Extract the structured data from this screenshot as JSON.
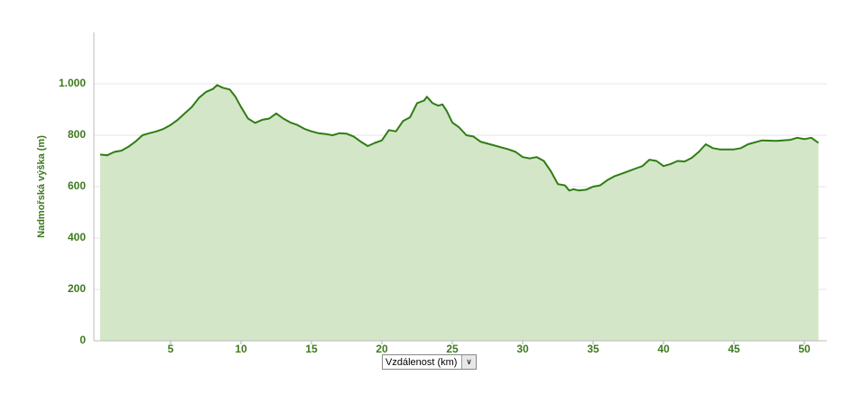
{
  "chart_data": {
    "type": "area",
    "y_label": "Nadmořská výška (m)",
    "x_label": "Vzdálenost (km)",
    "x": [
      0,
      0.5,
      1,
      1.5,
      2,
      2.5,
      3,
      3.5,
      4,
      4.5,
      5,
      5.5,
      6,
      6.5,
      7,
      7.5,
      8,
      8.3,
      8.7,
      9.2,
      9.6,
      10,
      10.5,
      11,
      11.5,
      12,
      12.5,
      13,
      13.5,
      14,
      14.5,
      15,
      15.5,
      16,
      16.5,
      17,
      17.5,
      18,
      18.5,
      19,
      19.5,
      20,
      20.5,
      21,
      21.5,
      22,
      22.5,
      23,
      23.2,
      23.6,
      24,
      24.3,
      24.6,
      25,
      25.5,
      26,
      26.5,
      27,
      28,
      29,
      29.5,
      30,
      30.5,
      31,
      31.5,
      32,
      32.5,
      33,
      33.3,
      33.6,
      34,
      34.5,
      35,
      35.5,
      36,
      36.5,
      37,
      37.5,
      38,
      38.5,
      39,
      39.5,
      40,
      40.5,
      41,
      41.5,
      42,
      42.5,
      43,
      43.5,
      44,
      45,
      45.5,
      46,
      47,
      48,
      49,
      49.5,
      50,
      50.5,
      51
    ],
    "values": [
      725,
      722,
      735,
      740,
      755,
      775,
      800,
      808,
      815,
      825,
      840,
      860,
      885,
      910,
      945,
      968,
      980,
      995,
      985,
      978,
      950,
      910,
      865,
      848,
      860,
      865,
      885,
      865,
      850,
      840,
      825,
      815,
      808,
      805,
      800,
      808,
      806,
      795,
      775,
      758,
      770,
      780,
      820,
      815,
      855,
      870,
      925,
      935,
      950,
      925,
      915,
      920,
      895,
      850,
      830,
      800,
      795,
      775,
      760,
      745,
      735,
      715,
      710,
      715,
      700,
      660,
      610,
      605,
      585,
      590,
      585,
      588,
      600,
      605,
      625,
      640,
      650,
      660,
      670,
      680,
      705,
      700,
      680,
      688,
      700,
      698,
      712,
      735,
      765,
      750,
      745,
      745,
      750,
      765,
      780,
      778,
      782,
      790,
      785,
      790,
      770
    ],
    "color": "#2f7d14",
    "fill": "#d3e6c8",
    "xlim": [
      0,
      51
    ],
    "xticks": [
      5,
      10,
      15,
      20,
      25,
      30,
      35,
      40,
      45,
      50
    ],
    "ylim": [
      0,
      1200
    ],
    "yticks": [
      0,
      200,
      400,
      600,
      800,
      {
        "value": 1000,
        "label": "1.000"
      }
    ],
    "grid": true
  }
}
